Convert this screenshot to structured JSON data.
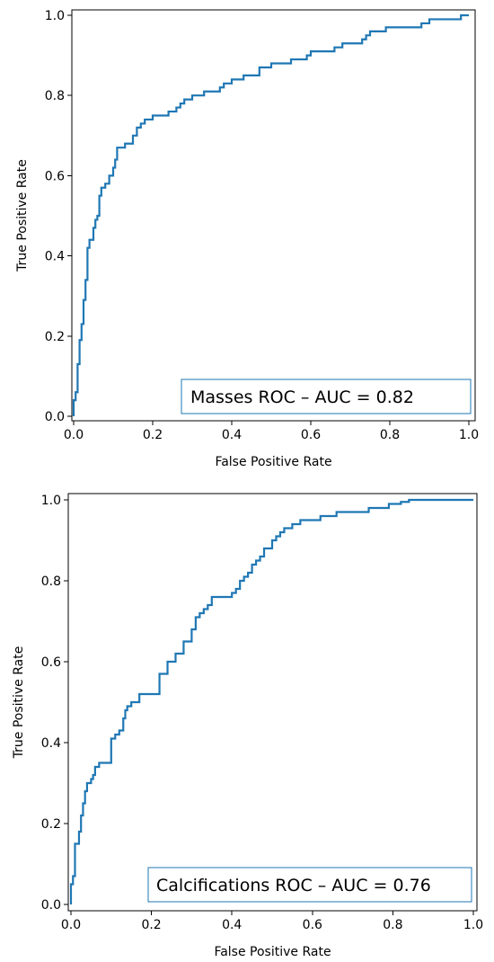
{
  "chart_data": [
    {
      "type": "line",
      "step": true,
      "xlabel": "False Positive Rate",
      "ylabel": "True Positive Rate",
      "xlim": [
        0.0,
        1.0
      ],
      "ylim": [
        0.0,
        1.0
      ],
      "xticks": [
        "0.0",
        "0.2",
        "0.4",
        "0.6",
        "0.8",
        "1.0"
      ],
      "yticks": [
        "0.0",
        "0.2",
        "0.4",
        "0.6",
        "0.8",
        "1.0"
      ],
      "legend": {
        "text": "Masses ROC – AUC = 0.82",
        "position": "lower-right"
      },
      "series": [
        {
          "color": "#1f77b4",
          "x": [
            0,
            0,
            0.005,
            0.005,
            0.01,
            0.01,
            0.015,
            0.015,
            0.02,
            0.02,
            0.025,
            0.025,
            0.03,
            0.03,
            0.035,
            0.035,
            0.04,
            0.04,
            0.05,
            0.05,
            0.055,
            0.055,
            0.06,
            0.06,
            0.065,
            0.065,
            0.07,
            0.07,
            0.08,
            0.08,
            0.09,
            0.09,
            0.1,
            0.1,
            0.105,
            0.105,
            0.11,
            0.11,
            0.12,
            0.12,
            0.125,
            0.125,
            0.13,
            0.13,
            0.15,
            0.15,
            0.16,
            0.16,
            0.17,
            0.17,
            0.18,
            0.18,
            0.19,
            0.19,
            0.2,
            0.2,
            0.22,
            0.22,
            0.24,
            0.24,
            0.26,
            0.26,
            0.27,
            0.27,
            0.28,
            0.28,
            0.3,
            0.3,
            0.33,
            0.33,
            0.34,
            0.34,
            0.37,
            0.37,
            0.38,
            0.38,
            0.4,
            0.4,
            0.43,
            0.43,
            0.47,
            0.47,
            0.5,
            0.5,
            0.55,
            0.55,
            0.59,
            0.59,
            0.6,
            0.6,
            0.63,
            0.63,
            0.66,
            0.66,
            0.68,
            0.68,
            0.73,
            0.73,
            0.74,
            0.74,
            0.75,
            0.75,
            0.78,
            0.78,
            0.79,
            0.79,
            0.8,
            0.8,
            0.88,
            0.88,
            0.9,
            0.9,
            0.96,
            0.96,
            0.98,
            0.98,
            1.0
          ],
          "y": [
            0,
            0.04,
            0.04,
            0.06,
            0.06,
            0.13,
            0.13,
            0.19,
            0.19,
            0.23,
            0.23,
            0.29,
            0.29,
            0.34,
            0.34,
            0.42,
            0.42,
            0.44,
            0.44,
            0.47,
            0.47,
            0.49,
            0.49,
            0.5,
            0.5,
            0.55,
            0.55,
            0.57,
            0.57,
            0.58,
            0.58,
            0.6,
            0.6,
            0.62,
            0.62,
            0.64,
            0.64,
            0.67,
            0.67,
            0.67,
            0.67,
            0.67,
            0.67,
            0.68,
            0.68,
            0.7,
            0.7,
            0.72,
            0.72,
            0.73,
            0.73,
            0.74,
            0.74,
            0.74,
            0.74,
            0.75,
            0.75,
            0.75,
            0.75,
            0.76,
            0.76,
            0.77,
            0.77,
            0.78,
            0.78,
            0.79,
            0.79,
            0.8,
            0.8,
            0.81,
            0.81,
            0.81,
            0.81,
            0.82,
            0.82,
            0.83,
            0.83,
            0.84,
            0.84,
            0.85,
            0.85,
            0.87,
            0.87,
            0.88,
            0.88,
            0.89,
            0.89,
            0.9,
            0.9,
            0.91,
            0.91,
            0.91,
            0.91,
            0.92,
            0.92,
            0.93,
            0.93,
            0.94,
            0.94,
            0.95,
            0.95,
            0.96,
            0.96,
            0.96,
            0.96,
            0.97,
            0.97,
            0.97,
            0.97,
            0.98,
            0.98,
            0.99,
            0.99,
            0.99,
            0.99,
            1.0,
            1.0
          ]
        }
      ]
    },
    {
      "type": "line",
      "step": true,
      "xlabel": "False Positive Rate",
      "ylabel": "True Positive Rate",
      "xlim": [
        0.0,
        1.0
      ],
      "ylim": [
        0.0,
        1.0
      ],
      "xticks": [
        "0.0",
        "0.2",
        "0.4",
        "0.6",
        "0.8",
        "1.0"
      ],
      "yticks": [
        "0.0",
        "0.2",
        "0.4",
        "0.6",
        "0.8",
        "1.0"
      ],
      "legend": {
        "text": "Calcifications ROC – AUC = 0.76",
        "position": "lower-right"
      },
      "series": [
        {
          "color": "#1f77b4",
          "x": [
            0,
            0,
            0.005,
            0.005,
            0.01,
            0.01,
            0.02,
            0.02,
            0.025,
            0.025,
            0.03,
            0.03,
            0.035,
            0.035,
            0.04,
            0.04,
            0.05,
            0.05,
            0.055,
            0.055,
            0.06,
            0.06,
            0.07,
            0.07,
            0.08,
            0.08,
            0.1,
            0.1,
            0.11,
            0.11,
            0.12,
            0.12,
            0.13,
            0.13,
            0.135,
            0.135,
            0.14,
            0.14,
            0.15,
            0.15,
            0.17,
            0.17,
            0.2,
            0.2,
            0.22,
            0.22,
            0.24,
            0.24,
            0.26,
            0.26,
            0.28,
            0.28,
            0.3,
            0.3,
            0.31,
            0.31,
            0.32,
            0.32,
            0.33,
            0.33,
            0.34,
            0.34,
            0.35,
            0.35,
            0.4,
            0.4,
            0.41,
            0.41,
            0.42,
            0.42,
            0.43,
            0.43,
            0.44,
            0.44,
            0.45,
            0.45,
            0.46,
            0.46,
            0.47,
            0.47,
            0.48,
            0.48,
            0.5,
            0.5,
            0.51,
            0.51,
            0.52,
            0.52,
            0.53,
            0.53,
            0.55,
            0.55,
            0.56,
            0.56,
            0.57,
            0.57,
            0.58,
            0.58,
            0.6,
            0.6,
            0.62,
            0.62,
            0.64,
            0.64,
            0.66,
            0.66,
            0.69,
            0.69,
            0.72,
            0.72,
            0.74,
            0.74,
            0.77,
            0.77,
            0.79,
            0.79,
            0.8,
            0.8,
            0.81,
            0.81,
            0.82,
            0.82,
            0.83,
            0.83,
            0.84,
            0.84,
            0.85,
            0.85,
            0.86,
            0.86,
            1.0
          ],
          "y": [
            0,
            0.05,
            0.05,
            0.07,
            0.07,
            0.15,
            0.15,
            0.18,
            0.18,
            0.22,
            0.22,
            0.25,
            0.25,
            0.28,
            0.28,
            0.3,
            0.3,
            0.31,
            0.31,
            0.32,
            0.32,
            0.34,
            0.34,
            0.35,
            0.35,
            0.35,
            0.35,
            0.41,
            0.41,
            0.42,
            0.42,
            0.43,
            0.43,
            0.46,
            0.46,
            0.48,
            0.48,
            0.49,
            0.49,
            0.5,
            0.5,
            0.52,
            0.52,
            0.52,
            0.52,
            0.57,
            0.57,
            0.6,
            0.6,
            0.62,
            0.62,
            0.65,
            0.65,
            0.68,
            0.68,
            0.71,
            0.71,
            0.72,
            0.72,
            0.73,
            0.73,
            0.74,
            0.74,
            0.76,
            0.76,
            0.77,
            0.77,
            0.78,
            0.78,
            0.8,
            0.8,
            0.81,
            0.81,
            0.82,
            0.82,
            0.84,
            0.84,
            0.85,
            0.85,
            0.86,
            0.86,
            0.88,
            0.88,
            0.9,
            0.9,
            0.91,
            0.91,
            0.92,
            0.92,
            0.93,
            0.93,
            0.94,
            0.94,
            0.94,
            0.94,
            0.95,
            0.95,
            0.95,
            0.95,
            0.95,
            0.95,
            0.96,
            0.96,
            0.96,
            0.96,
            0.97,
            0.97,
            0.97,
            0.97,
            0.97,
            0.97,
            0.98,
            0.98,
            0.98,
            0.98,
            0.99,
            0.99,
            0.99,
            0.99,
            0.99,
            0.99,
            0.995,
            0.995,
            0.995,
            0.995,
            1.0,
            1.0,
            1.0,
            1.0,
            1.0,
            1.0
          ]
        }
      ]
    }
  ]
}
